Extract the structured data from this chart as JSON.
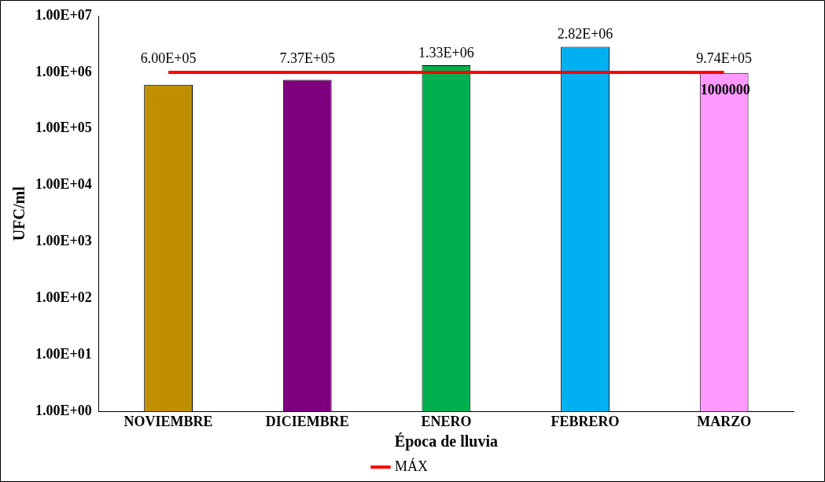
{
  "chart_data": {
    "type": "bar",
    "xlabel": "Época de lluvia",
    "ylabel": "UFC/ml",
    "categories": [
      "NOVIEMBRE",
      "DICIEMBRE",
      "ENERO",
      "FEBRERO",
      "MARZO"
    ],
    "series": [
      {
        "values": [
          600000,
          737000,
          1330000,
          2820000,
          974000
        ],
        "colors": [
          "#bf8f00",
          "#7f007f",
          "#00b050",
          "#00b0f0",
          "#ff99ff"
        ],
        "value_labels": [
          "6.00E+05",
          "7.37E+05",
          "1.33E+06",
          "2.82E+06",
          "9.74E+05"
        ]
      },
      {
        "type": "line",
        "name": "MÁX",
        "color": "#ff0000",
        "values": [
          1000000,
          1000000,
          1000000,
          1000000,
          1000000
        ],
        "value_labels": [
          null,
          null,
          null,
          null,
          "1000000"
        ]
      }
    ],
    "log": "y",
    "ylim": [
      1,
      10000000
    ],
    "yticks": [
      {
        "value": 1,
        "label": "1.00E+00"
      },
      {
        "value": 10,
        "label": "1.00E+01"
      },
      {
        "value": 100,
        "label": "1.00E+02"
      },
      {
        "value": 1000,
        "label": "1.00E+03"
      },
      {
        "value": 10000,
        "label": "1.00E+04"
      },
      {
        "value": 100000,
        "label": "1.00E+05"
      },
      {
        "value": 1000000,
        "label": "1.00E+06"
      },
      {
        "value": 10000000,
        "label": "1.00E+07"
      }
    ],
    "grid": false,
    "legend": "bottom",
    "marker": "none"
  }
}
